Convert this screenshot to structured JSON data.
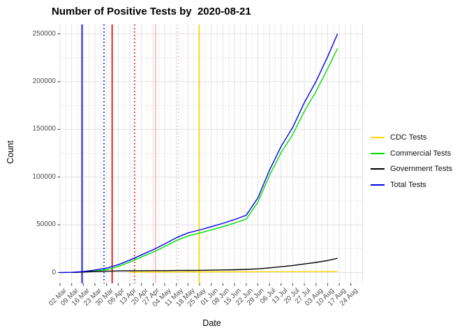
{
  "title": "Number of Positive Tests by  2020-08-21",
  "axes": {
    "x_label": "Date",
    "y_label": "Count",
    "y_ticks": [
      {
        "label": "0",
        "value": 0
      },
      {
        "label": "50000",
        "value": 50000
      },
      {
        "label": "100000",
        "value": 100000
      },
      {
        "label": "150000",
        "value": 150000
      },
      {
        "label": "200000",
        "value": 200000
      },
      {
        "label": "250000",
        "value": 250000
      }
    ],
    "x_ticks": [
      "02 Mar",
      "09 Mar",
      "16 Mar",
      "23 Mar",
      "30 Mar",
      "06 Apr",
      "13 Apr",
      "20 Apr",
      "27 Apr",
      "04 May",
      "11 May",
      "18 May",
      "25 May",
      "01 Jun",
      "08 Jun",
      "15 Jun",
      "22 Jun",
      "29 Jun",
      "06 Jul",
      "13 Jul",
      "20 Jul",
      "27 Jul",
      "03 Aug",
      "10 Aug",
      "17 Aug",
      "24 Aug"
    ]
  },
  "legend": [
    {
      "label": "CDC Tests",
      "color": "#FFD700"
    },
    {
      "label": "Commercial Tests",
      "color": "#00DC00"
    },
    {
      "label": "Government Tests",
      "color": "#000000"
    },
    {
      "label": "Total Tests",
      "color": "#0000EE"
    }
  ],
  "chart_data": {
    "type": "line",
    "title": "Number of Positive Tests by  2020-08-21",
    "xlabel": "Date",
    "ylabel": "Count",
    "x_unit": "weeks since 02 Mar 2020",
    "ylim": [
      0,
      250000
    ],
    "grid": true,
    "legend_position": "right",
    "x_tick_labels": [
      "02 Mar",
      "09 Mar",
      "16 Mar",
      "23 Mar",
      "30 Mar",
      "06 Apr",
      "13 Apr",
      "20 Apr",
      "27 Apr",
      "04 May",
      "11 May",
      "18 May",
      "25 May",
      "01 Jun",
      "08 Jun",
      "15 Jun",
      "22 Jun",
      "29 Jun",
      "06 Jul",
      "13 Jul",
      "20 Jul",
      "27 Jul",
      "03 Aug",
      "10 Aug",
      "17 Aug",
      "24 Aug"
    ],
    "x_weeks": [
      0,
      1,
      2,
      3,
      4,
      5,
      6,
      7,
      8,
      9,
      10,
      11,
      12,
      13,
      14,
      15,
      16,
      17,
      18,
      19,
      20,
      21,
      22,
      23,
      23.85
    ],
    "point_dates": [
      "02 Mar",
      "09 Mar",
      "16 Mar",
      "23 Mar",
      "30 Mar",
      "06 Apr",
      "13 Apr",
      "20 Apr",
      "27 Apr",
      "04 May",
      "11 May",
      "18 May",
      "25 May",
      "01 Jun",
      "08 Jun",
      "15 Jun",
      "22 Jun",
      "29 Jun",
      "06 Jul",
      "13 Jul",
      "20 Jul",
      "27 Jul",
      "03 Aug",
      "10 Aug",
      "21 Aug"
    ],
    "series": [
      {
        "name": "CDC Tests",
        "color": "#FFD700",
        "values": [
          null,
          null,
          null,
          null,
          null,
          null,
          400,
          500,
          550,
          600,
          650,
          700,
          720,
          750,
          780,
          800,
          820,
          850,
          880,
          900,
          950,
          1000,
          1050,
          1100,
          1200
        ]
      },
      {
        "name": "Commercial Tests",
        "color": "#00DC00",
        "values": [
          null,
          100,
          700,
          1500,
          3000,
          6300,
          11000,
          16300,
          21300,
          27200,
          33500,
          38300,
          41400,
          44700,
          48000,
          51800,
          56000,
          73500,
          101500,
          125500,
          144500,
          169000,
          189500,
          213500,
          234700
        ]
      },
      {
        "name": "Government Tests",
        "color": "#000000",
        "values": [
          null,
          100,
          500,
          1000,
          1400,
          1650,
          1800,
          1900,
          1950,
          2000,
          2100,
          2200,
          2300,
          2500,
          2700,
          2900,
          3300,
          3900,
          4900,
          6100,
          7400,
          9000,
          10600,
          12600,
          15000
        ]
      },
      {
        "name": "Total Tests",
        "color": "#0000EE",
        "values": [
          0,
          200,
          1000,
          2600,
          4600,
          8200,
          13000,
          18500,
          23800,
          30000,
          36500,
          41500,
          44600,
          48000,
          51500,
          55500,
          60000,
          78000,
          107000,
          132000,
          152000,
          178000,
          200000,
          226000,
          250000
        ]
      }
    ],
    "vlines": [
      {
        "color": "#0000CD",
        "style": "solid",
        "week": 1.89
      },
      {
        "color": "#0000CD",
        "style": "dotted",
        "week": 3.78
      },
      {
        "color": "#E60000",
        "style": "solid",
        "week": 4.48
      },
      {
        "color": "#E60000",
        "style": "dotted",
        "week": 6.4
      },
      {
        "color": "#FFB6C1",
        "style": "solid",
        "week": 8.21
      },
      {
        "color": "#FFB6C1",
        "style": "dotted",
        "week": 10.17
      },
      {
        "color": "#FFD700",
        "style": "solid",
        "week": 11.96
      }
    ]
  }
}
